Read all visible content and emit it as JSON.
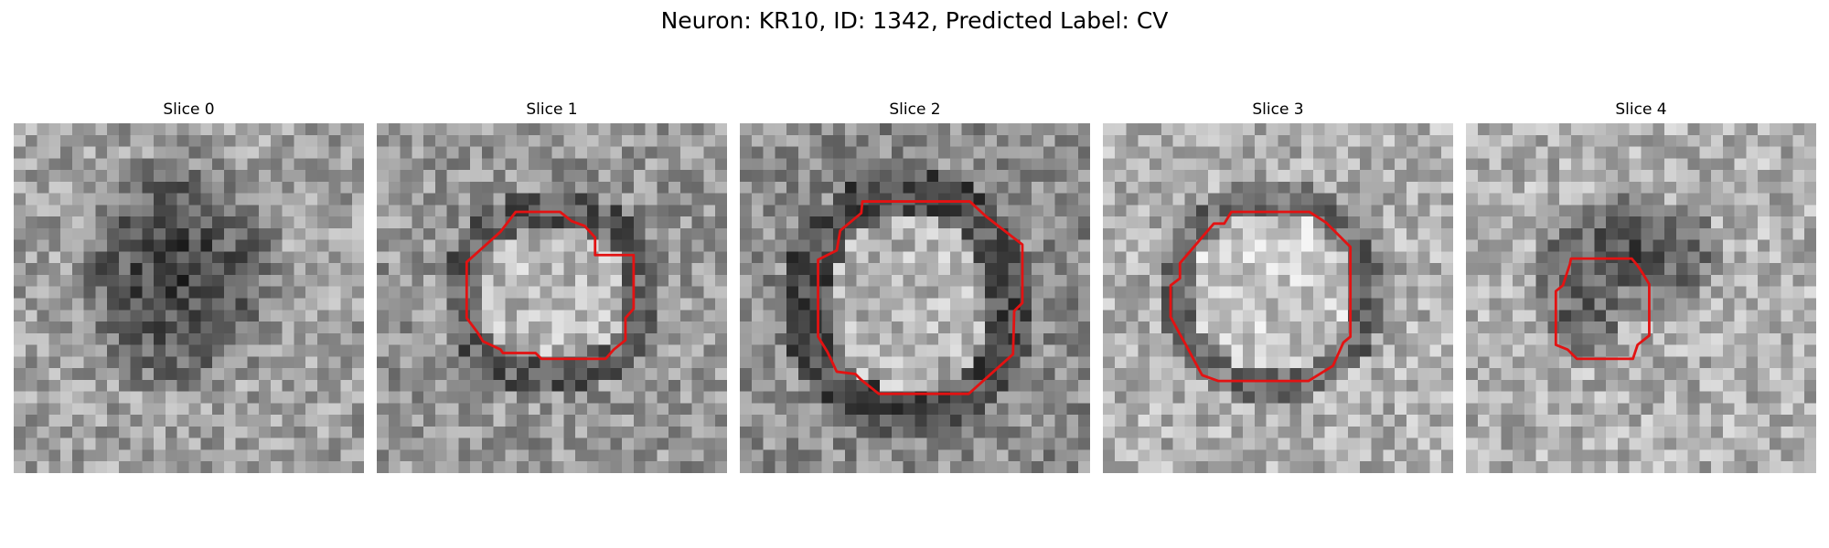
{
  "figure": {
    "title": "Neuron: KR10, ID: 1342, Predicted Label: CV"
  },
  "colors": {
    "contour": "#e31212",
    "background": "#ffffff"
  },
  "panels": [
    {
      "title": "Slice 0"
    },
    {
      "title": "Slice 1"
    },
    {
      "title": "Slice 2"
    },
    {
      "title": "Slice 3"
    },
    {
      "title": "Slice 4"
    }
  ]
}
